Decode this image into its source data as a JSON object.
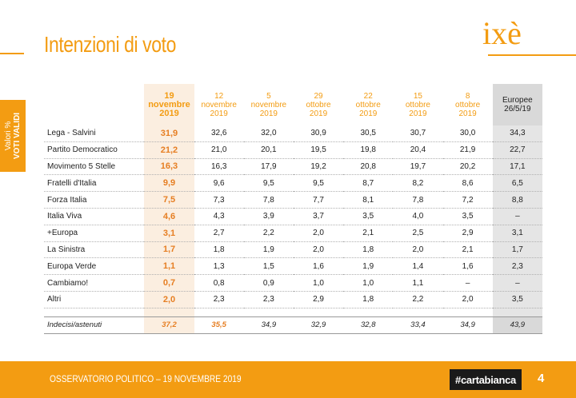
{
  "header": {
    "title": "Intenzioni di voto",
    "logo": "ixè"
  },
  "side_tab": {
    "line1": "Valori %",
    "line2": "VOTI VALIDI"
  },
  "table": {
    "columns": [
      "19\nnovembre\n2019",
      "12\nnovembre\n2019",
      "5\nnovembre\n2019",
      "29\nottobre\n2019",
      "22\nottobre\n2019",
      "15\nottobre\n2019",
      "8\nottobre\n2019",
      "Europee\n26/5/19"
    ],
    "rows": [
      {
        "label": "Lega - Salvini",
        "values": [
          "31,9",
          "32,6",
          "32,0",
          "30,9",
          "30,5",
          "30,7",
          "30,0",
          "34,3"
        ]
      },
      {
        "label": "Partito Democratico",
        "values": [
          "21,2",
          "21,0",
          "20,1",
          "19,5",
          "19,8",
          "20,4",
          "21,9",
          "22,7"
        ]
      },
      {
        "label": "Movimento 5 Stelle",
        "values": [
          "16,3",
          "16,3",
          "17,9",
          "19,2",
          "20,8",
          "19,7",
          "20,2",
          "17,1"
        ]
      },
      {
        "label": "Fratelli d'Italia",
        "values": [
          "9,9",
          "9,6",
          "9,5",
          "9,5",
          "8,7",
          "8,2",
          "8,6",
          "6,5"
        ]
      },
      {
        "label": "Forza Italia",
        "values": [
          "7,5",
          "7,3",
          "7,8",
          "7,7",
          "8,1",
          "7,8",
          "7,2",
          "8,8"
        ]
      },
      {
        "label": "Italia Viva",
        "values": [
          "4,6",
          "4,3",
          "3,9",
          "3,7",
          "3,5",
          "4,0",
          "3,5",
          "–"
        ]
      },
      {
        "label": "+Europa",
        "values": [
          "3,1",
          "2,7",
          "2,2",
          "2,0",
          "2,1",
          "2,5",
          "2,9",
          "3,1"
        ]
      },
      {
        "label": "La Sinistra",
        "values": [
          "1,7",
          "1,8",
          "1,9",
          "2,0",
          "1,8",
          "2,0",
          "2,1",
          "1,7"
        ]
      },
      {
        "label": "Europa Verde",
        "values": [
          "1,1",
          "1,3",
          "1,5",
          "1,6",
          "1,9",
          "1,4",
          "1,6",
          "2,3"
        ]
      },
      {
        "label": "Cambiamo!",
        "values": [
          "0,7",
          "0,8",
          "0,9",
          "1,0",
          "1,0",
          "1,1",
          "–",
          "–"
        ]
      },
      {
        "label": "Altri",
        "values": [
          "2,0",
          "2,3",
          "2,3",
          "2,9",
          "1,8",
          "2,2",
          "2,0",
          "3,5"
        ]
      }
    ],
    "indecisi": {
      "label": "Indecisi/astenuti",
      "values": [
        "37,2",
        "35,5",
        "34,9",
        "32,9",
        "32,8",
        "33,4",
        "34,9",
        "43,9"
      ]
    }
  },
  "footer": {
    "text": "OSSERVATORIO POLITICO – 19 NOVEMBRE 2019",
    "brand": "#cartabianca",
    "page_number": "4"
  },
  "colors": {
    "accent": "#f39c12",
    "highlight_text": "#e67e22",
    "europee_bg": "#d9d9d9"
  }
}
